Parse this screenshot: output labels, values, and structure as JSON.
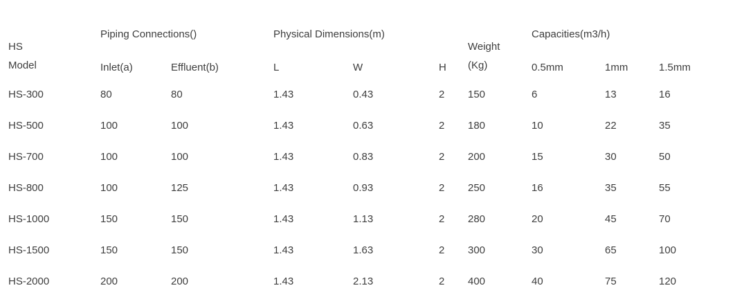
{
  "page": {
    "background_color": "#ffffff",
    "text_color": "#3d3d3d"
  },
  "table": {
    "header": {
      "model_line1": "HS",
      "model_line2": "Model",
      "piping_group": "Piping Connections()",
      "dimensions_group": "Physical Dimensions(m)",
      "weight_line1": "Weight",
      "weight_line2": "(Kg)",
      "capacities_group": "Capacities(m3/h)",
      "sub": [
        "Inlet(a)",
        "Effluent(b)",
        "L",
        "W",
        "H",
        "0.5mm",
        "1mm",
        "1.5mm"
      ]
    },
    "rows": [
      {
        "model": "HS-300",
        "values": [
          "80",
          "80",
          "1.43",
          "0.43",
          "2",
          "150",
          "6",
          "13",
          "16"
        ]
      },
      {
        "model": "HS-500",
        "values": [
          "100",
          "100",
          "1.43",
          "0.63",
          "2",
          "180",
          "10",
          "22",
          "35"
        ]
      },
      {
        "model": "HS-700",
        "values": [
          "100",
          "100",
          "1.43",
          "0.83",
          "2",
          "200",
          "15",
          "30",
          "50"
        ]
      },
      {
        "model": "HS-800",
        "values": [
          "100",
          "125",
          "1.43",
          "0.93",
          "2",
          "250",
          "16",
          "35",
          "55"
        ]
      },
      {
        "model": "HS-1000",
        "values": [
          "150",
          "150",
          "1.43",
          "1.13",
          "2",
          "280",
          "20",
          "45",
          "70"
        ]
      },
      {
        "model": "HS-1500",
        "values": [
          "150",
          "150",
          "1.43",
          "1.63",
          "2",
          "300",
          "30",
          "65",
          "100"
        ]
      },
      {
        "model": "HS-2000",
        "values": [
          "200",
          "200",
          "1.43",
          "2.13",
          "2",
          "400",
          "40",
          "75",
          "120"
        ]
      }
    ]
  },
  "chart_data": {
    "type": "table",
    "title": "",
    "columns": [
      "HS Model",
      "Piping Connections() Inlet(a)",
      "Piping Connections() Effluent(b)",
      "Physical Dimensions(m) L",
      "Physical Dimensions(m) W",
      "Physical Dimensions(m) H",
      "Weight (Kg)",
      "Capacities(m3/h) 0.5mm",
      "Capacities(m3/h) 1mm",
      "Capacities(m3/h) 1.5mm"
    ],
    "rows": [
      [
        "HS-300",
        80,
        80,
        1.43,
        0.43,
        2,
        150,
        6,
        13,
        16
      ],
      [
        "HS-500",
        100,
        100,
        1.43,
        0.63,
        2,
        180,
        10,
        22,
        35
      ],
      [
        "HS-700",
        100,
        100,
        1.43,
        0.83,
        2,
        200,
        15,
        30,
        50
      ],
      [
        "HS-800",
        100,
        125,
        1.43,
        0.93,
        2,
        250,
        16,
        35,
        55
      ],
      [
        "HS-1000",
        150,
        150,
        1.43,
        1.13,
        2,
        280,
        20,
        45,
        70
      ],
      [
        "HS-1500",
        150,
        150,
        1.43,
        1.63,
        2,
        300,
        30,
        65,
        100
      ],
      [
        "HS-2000",
        200,
        200,
        1.43,
        2.13,
        2,
        400,
        40,
        75,
        120
      ]
    ]
  }
}
